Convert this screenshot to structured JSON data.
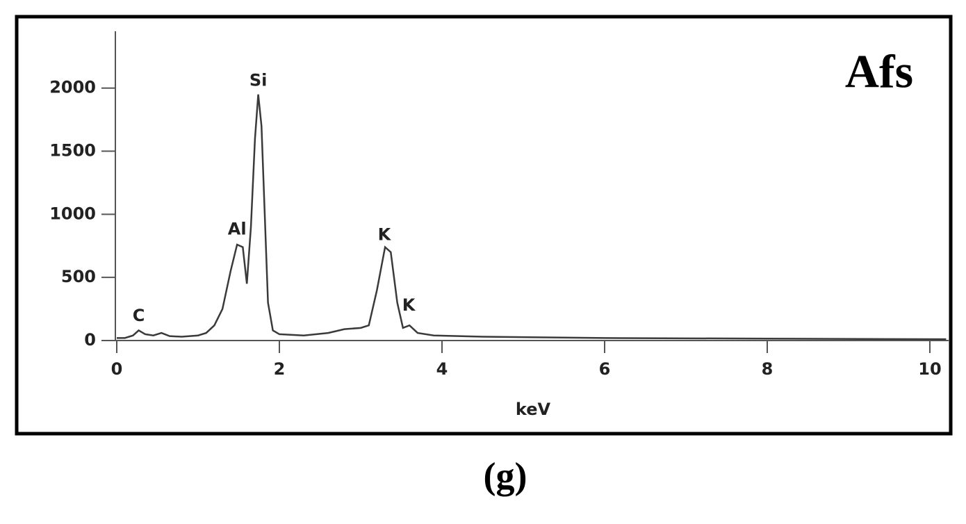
{
  "chart_data": {
    "type": "line",
    "title": "Afs",
    "caption": "(g)",
    "x_label": "keV",
    "x": [
      0,
      0.1,
      0.2,
      0.27,
      0.35,
      0.45,
      0.55,
      0.65,
      0.8,
      1.0,
      1.1,
      1.2,
      1.3,
      1.4,
      1.48,
      1.55,
      1.6,
      1.65,
      1.7,
      1.74,
      1.78,
      1.82,
      1.86,
      1.92,
      2.0,
      2.3,
      2.6,
      2.8,
      3.0,
      3.1,
      3.2,
      3.3,
      3.37,
      3.45,
      3.52,
      3.6,
      3.7,
      3.9,
      4.5,
      6,
      8,
      10.2
    ],
    "values": [
      20,
      20,
      40,
      80,
      50,
      40,
      60,
      35,
      30,
      40,
      60,
      120,
      250,
      550,
      760,
      740,
      450,
      900,
      1600,
      1950,
      1700,
      1000,
      300,
      80,
      50,
      40,
      60,
      90,
      100,
      120,
      400,
      740,
      700,
      300,
      100,
      120,
      60,
      40,
      30,
      20,
      15,
      10
    ],
    "color": "#3a3a3a",
    "xlim": [
      0,
      10.2
    ],
    "ylim": [
      0,
      2450
    ],
    "xticks": [
      0,
      2,
      4,
      6,
      8,
      10
    ],
    "yticks": [
      0,
      500,
      1000,
      1500,
      2000
    ],
    "annotations": [
      {
        "text": "C",
        "x": 0.27,
        "y": 192
      },
      {
        "text": "Al",
        "x": 1.48,
        "y": 877
      },
      {
        "text": "Si",
        "x": 1.74,
        "y": 2055
      },
      {
        "text": "K",
        "x": 3.29,
        "y": 833
      },
      {
        "text": "K",
        "x": 3.59,
        "y": 274
      }
    ]
  }
}
